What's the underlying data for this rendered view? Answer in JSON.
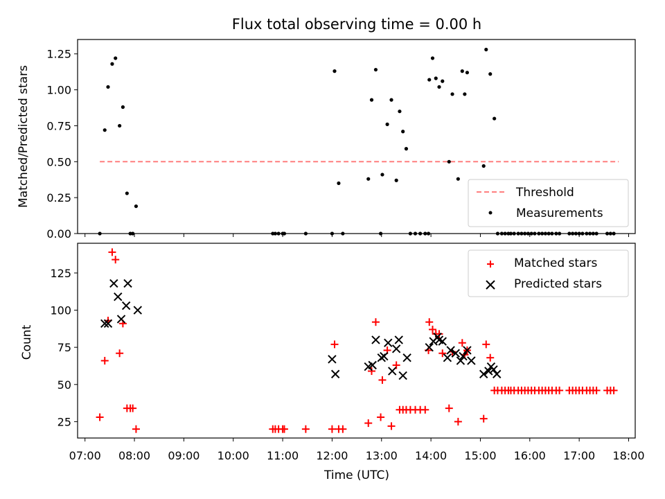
{
  "figure": {
    "title": "Flux total observing time = 0.00 h",
    "xlabel": "Time (UTC)"
  },
  "colors": {
    "threshold": "#ff7f7f",
    "measurements": "#000000",
    "matched": "#ff0000",
    "predicted": "#000000"
  },
  "chart_data": [
    {
      "type": "scatter",
      "ylabel": "Matched/Predicted stars",
      "xlim": [
        "06:51",
        "18:08"
      ],
      "ylim": [
        0,
        1.35
      ],
      "yticks": [
        0.0,
        0.25,
        0.5,
        0.75,
        1.0,
        1.25
      ],
      "ytick_labels": [
        "0.00",
        "0.25",
        "0.50",
        "0.75",
        "1.00",
        "1.25"
      ],
      "grid": false,
      "legend_position": "lower-right",
      "threshold": {
        "name": "Threshold",
        "y": 0.5,
        "x_start": "07:18",
        "x_end": "17:48"
      },
      "series": [
        {
          "name": "Measurements",
          "x": [
            "07:18",
            "07:24",
            "07:28",
            "07:33",
            "07:37",
            "07:42",
            "07:46",
            "07:51",
            "07:55",
            "07:58",
            "08:02",
            "10:48",
            "10:51",
            "10:55",
            "11:00",
            "11:02",
            "11:28",
            "12:00",
            "12:03",
            "12:08",
            "12:13",
            "12:44",
            "12:48",
            "12:53",
            "12:59",
            "13:01",
            "13:07",
            "13:12",
            "13:18",
            "13:22",
            "13:26",
            "13:30",
            "13:35",
            "13:41",
            "13:47",
            "13:53",
            "13:57",
            "13:58",
            "14:02",
            "14:06",
            "14:10",
            "14:14",
            "14:22",
            "14:26",
            "14:33",
            "14:38",
            "14:41",
            "14:44",
            "15:04",
            "15:07",
            "15:12",
            "15:17",
            "15:21",
            "15:26",
            "15:30",
            "15:34",
            "15:37",
            "15:41",
            "15:46",
            "15:50",
            "15:54",
            "15:58",
            "16:02",
            "16:06",
            "16:11",
            "16:15",
            "16:19",
            "16:23",
            "16:27",
            "16:32",
            "16:36",
            "16:48",
            "16:52",
            "16:56",
            "17:00",
            "17:04",
            "17:09",
            "17:13",
            "17:17",
            "17:21",
            "17:34",
            "17:38",
            "17:42"
          ],
          "y": [
            0.0,
            0.72,
            1.02,
            1.18,
            1.22,
            0.75,
            0.88,
            0.28,
            0.0,
            0.0,
            0.19,
            0.0,
            0.0,
            0.0,
            0.0,
            0.0,
            0.0,
            0.0,
            1.13,
            0.35,
            0.0,
            0.38,
            0.93,
            1.14,
            0.0,
            0.41,
            0.76,
            0.93,
            0.37,
            0.85,
            0.71,
            0.59,
            0.0,
            0.0,
            0.0,
            0.0,
            0.0,
            1.07,
            1.22,
            1.08,
            1.02,
            1.06,
            0.5,
            0.97,
            0.38,
            1.13,
            0.97,
            1.12,
            0.47,
            1.28,
            1.11,
            0.8,
            0.0,
            0.0,
            0.0,
            0.0,
            0.0,
            0.0,
            0.0,
            0.0,
            0.0,
            0.0,
            0.0,
            0.0,
            0.0,
            0.0,
            0.0,
            0.0,
            0.0,
            0.0,
            0.0,
            0.0,
            0.0,
            0.0,
            0.0,
            0.0,
            0.0,
            0.0,
            0.0,
            0.0,
            0.0,
            0.0,
            0.0
          ]
        }
      ]
    },
    {
      "type": "scatter",
      "ylabel": "Count",
      "xlim": [
        "06:51",
        "18:08"
      ],
      "ylim": [
        14,
        145
      ],
      "yticks": [
        25,
        50,
        75,
        100,
        125
      ],
      "ytick_labels": [
        "25",
        "50",
        "75",
        "100",
        "125"
      ],
      "xticks": [
        "07:00",
        "08:00",
        "09:00",
        "10:00",
        "11:00",
        "12:00",
        "13:00",
        "14:00",
        "15:00",
        "16:00",
        "17:00",
        "18:00"
      ],
      "xtick_labels": [
        "07:00",
        "08:00",
        "09:00",
        "10:00",
        "11:00",
        "12:00",
        "13:00",
        "14:00",
        "15:00",
        "16:00",
        "17:00",
        "18:00"
      ],
      "grid": false,
      "legend_position": "upper-right",
      "series": [
        {
          "name": "Matched stars",
          "marker": "plus",
          "x": [
            "07:18",
            "07:24",
            "07:28",
            "07:33",
            "07:37",
            "07:42",
            "07:46",
            "07:51",
            "07:55",
            "07:58",
            "08:02",
            "10:48",
            "10:51",
            "10:55",
            "11:00",
            "11:02",
            "11:28",
            "12:00",
            "12:03",
            "12:08",
            "12:13",
            "12:44",
            "12:48",
            "12:53",
            "12:59",
            "13:01",
            "13:07",
            "13:12",
            "13:18",
            "13:22",
            "13:26",
            "13:30",
            "13:35",
            "13:41",
            "13:47",
            "13:53",
            "13:57",
            "13:58",
            "14:02",
            "14:06",
            "14:10",
            "14:14",
            "14:22",
            "14:26",
            "14:33",
            "14:38",
            "14:41",
            "14:44",
            "15:04",
            "15:07",
            "15:12",
            "15:17",
            "15:21",
            "15:26",
            "15:30",
            "15:34",
            "15:37",
            "15:41",
            "15:46",
            "15:50",
            "15:54",
            "15:58",
            "16:02",
            "16:06",
            "16:11",
            "16:15",
            "16:19",
            "16:23",
            "16:27",
            "16:32",
            "16:36",
            "16:48",
            "16:52",
            "16:56",
            "17:00",
            "17:04",
            "17:09",
            "17:13",
            "17:17",
            "17:21",
            "17:34",
            "17:38",
            "17:42"
          ],
          "y": [
            28,
            66,
            93,
            139,
            134,
            71,
            91,
            34,
            34,
            34,
            20,
            20,
            20,
            20,
            20,
            20,
            20,
            20,
            77,
            20,
            20,
            24,
            59,
            92,
            28,
            53,
            73,
            22,
            63,
            33,
            33,
            33,
            33,
            33,
            33,
            33,
            73,
            92,
            87,
            84,
            84,
            71,
            34,
            72,
            25,
            78,
            70,
            73,
            27,
            77,
            68,
            46,
            46,
            46,
            46,
            46,
            46,
            46,
            46,
            46,
            46,
            46,
            46,
            46,
            46,
            46,
            46,
            46,
            46,
            46,
            46,
            46,
            46,
            46,
            46,
            46,
            46,
            46,
            46,
            46,
            46,
            46,
            46
          ]
        },
        {
          "name": "Predicted stars",
          "marker": "x",
          "x": [
            "07:24",
            "07:28",
            "07:35",
            "07:40",
            "07:44",
            "07:50",
            "07:52",
            "08:04",
            "12:00",
            "12:04",
            "12:44",
            "12:49",
            "12:53",
            "13:00",
            "13:03",
            "13:08",
            "13:13",
            "13:18",
            "13:21",
            "13:26",
            "13:31",
            "13:58",
            "14:03",
            "14:08",
            "14:10",
            "14:14",
            "14:20",
            "14:24",
            "14:30",
            "14:36",
            "14:39",
            "14:44",
            "14:49",
            "15:04",
            "15:10",
            "15:13",
            "15:16",
            "15:20"
          ],
          "y": [
            91,
            91,
            118,
            109,
            94,
            103,
            118,
            100,
            67,
            57,
            62,
            63,
            80,
            68,
            69,
            78,
            59,
            74,
            80,
            56,
            68,
            75,
            79,
            82,
            80,
            79,
            68,
            73,
            71,
            66,
            69,
            73,
            66,
            57,
            59,
            62,
            60,
            57
          ]
        }
      ]
    }
  ]
}
